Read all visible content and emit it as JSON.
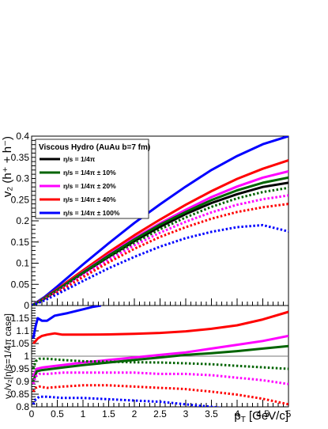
{
  "chart_data": [
    {
      "type": "line",
      "panel": "top",
      "ylabel": "v₂ (h⁺ + h⁻)",
      "xlim": [
        0,
        5
      ],
      "ylim": [
        0,
        0.4
      ],
      "x_ticks": [
        "0",
        "0.5",
        "1",
        "1.5",
        "2",
        "2.5",
        "3",
        "3.5",
        "4",
        "4.5",
        "5"
      ],
      "y_ticks": [
        "0",
        "0.05",
        "0.1",
        "0.15",
        "0.2",
        "0.25",
        "0.3",
        "0.35",
        "0.4"
      ],
      "legend": {
        "title": "Viscous Hydro (AuAu b=7 fm)",
        "position": "top-left",
        "entries": [
          {
            "label": "η/s = 1/4π",
            "color": "#000000"
          },
          {
            "label": "η/s = 1/4π ± 10%",
            "color": "#006400"
          },
          {
            "label": "η/s = 1/4π ± 20%",
            "color": "#ff00ff"
          },
          {
            "label": "η/s = 1/4π ± 40%",
            "color": "#ff0000"
          },
          {
            "label": "η/s = 1/4π ± 100%",
            "color": "#0000ff"
          }
        ]
      },
      "series": [
        {
          "color": "#000000",
          "style": "solid",
          "x": [
            0,
            0.25,
            0.5,
            1,
            1.5,
            2,
            2.5,
            3,
            3.5,
            4,
            4.5,
            5
          ],
          "y": [
            0,
            0.016,
            0.036,
            0.076,
            0.115,
            0.152,
            0.186,
            0.216,
            0.242,
            0.263,
            0.28,
            0.29
          ]
        },
        {
          "color": "#0000ff",
          "style": "solid",
          "x": [
            0,
            0.25,
            0.5,
            1,
            1.5,
            2,
            2.5,
            3,
            3.5,
            4,
            4.5,
            5
          ],
          "y": [
            0,
            0.02,
            0.045,
            0.097,
            0.147,
            0.195,
            0.239,
            0.281,
            0.32,
            0.353,
            0.381,
            0.4
          ]
        },
        {
          "color": "#ff0000",
          "style": "solid",
          "x": [
            0,
            0.25,
            0.5,
            1,
            1.5,
            2,
            2.5,
            3,
            3.5,
            4,
            4.5,
            5
          ],
          "y": [
            0,
            0.018,
            0.039,
            0.083,
            0.126,
            0.166,
            0.203,
            0.238,
            0.27,
            0.299,
            0.323,
            0.343
          ]
        },
        {
          "color": "#ff00ff",
          "style": "solid",
          "x": [
            0,
            0.25,
            0.5,
            1,
            1.5,
            2,
            2.5,
            3,
            3.5,
            4,
            4.5,
            5
          ],
          "y": [
            0,
            0.017,
            0.037,
            0.079,
            0.12,
            0.159,
            0.194,
            0.226,
            0.256,
            0.281,
            0.302,
            0.317
          ]
        },
        {
          "color": "#006400",
          "style": "solid",
          "x": [
            0,
            0.25,
            0.5,
            1,
            1.5,
            2,
            2.5,
            3,
            3.5,
            4,
            4.5,
            5
          ],
          "y": [
            0,
            0.017,
            0.037,
            0.078,
            0.118,
            0.156,
            0.191,
            0.221,
            0.249,
            0.272,
            0.29,
            0.302
          ]
        },
        {
          "color": "#006400",
          "style": "dotted",
          "x": [
            0,
            0.25,
            0.5,
            1,
            1.5,
            2,
            2.5,
            3,
            3.5,
            4,
            4.5,
            5
          ],
          "y": [
            0,
            0.015,
            0.034,
            0.074,
            0.112,
            0.148,
            0.18,
            0.208,
            0.233,
            0.253,
            0.268,
            0.278
          ]
        },
        {
          "color": "#ff00ff",
          "style": "dotted",
          "x": [
            0,
            0.25,
            0.5,
            1,
            1.5,
            2,
            2.5,
            3,
            3.5,
            4,
            4.5,
            5
          ],
          "y": [
            0,
            0.015,
            0.033,
            0.071,
            0.108,
            0.142,
            0.172,
            0.198,
            0.22,
            0.238,
            0.251,
            0.26
          ]
        },
        {
          "color": "#ff0000",
          "style": "dotted",
          "x": [
            0,
            0.25,
            0.5,
            1,
            1.5,
            2,
            2.5,
            3,
            3.5,
            4,
            4.5,
            5
          ],
          "y": [
            0,
            0.014,
            0.031,
            0.067,
            0.102,
            0.134,
            0.162,
            0.185,
            0.205,
            0.221,
            0.232,
            0.24
          ]
        },
        {
          "color": "#0000ff",
          "style": "dotted",
          "x": [
            0,
            0.25,
            0.5,
            1,
            1.5,
            2,
            2.5,
            3,
            3.5,
            4,
            4.5,
            5
          ],
          "y": [
            0,
            0.012,
            0.027,
            0.058,
            0.088,
            0.115,
            0.139,
            0.159,
            0.174,
            0.185,
            0.19,
            0.175
          ]
        }
      ]
    },
    {
      "type": "line",
      "panel": "bottom",
      "xlabel": "p_T [GeV/c]",
      "ylabel": "v₂/v₂[η/s=1/4π case]",
      "xlim": [
        0,
        5
      ],
      "ylim": [
        0.8,
        1.2
      ],
      "x_ticks": [
        "0",
        "0.5",
        "1",
        "1.5",
        "2",
        "2.5",
        "3",
        "3.5",
        "4",
        "4.5",
        "5"
      ],
      "y_ticks": [
        "0.8",
        "0.85",
        "0.9",
        "0.95",
        "1",
        "1.05",
        "1.1",
        "1.15"
      ],
      "reference_line": 1,
      "series": [
        {
          "color": "#0000ff",
          "style": "solid",
          "x": [
            0.03,
            0.08,
            0.12,
            0.2,
            0.3,
            0.45,
            0.7,
            1.0,
            1.2,
            1.35
          ],
          "y": [
            1.07,
            1.12,
            1.15,
            1.14,
            1.14,
            1.16,
            1.17,
            1.185,
            1.195,
            1.2
          ]
        },
        {
          "color": "#ff0000",
          "style": "solid",
          "x": [
            0.03,
            0.08,
            0.12,
            0.2,
            0.3,
            0.45,
            0.6,
            1.0,
            1.5,
            2.0,
            2.5,
            3.0,
            3.5,
            4.0,
            4.5,
            5.0
          ],
          "y": [
            1.05,
            1.06,
            1.07,
            1.08,
            1.085,
            1.09,
            1.085,
            1.085,
            1.086,
            1.088,
            1.092,
            1.098,
            1.108,
            1.122,
            1.145,
            1.175
          ]
        },
        {
          "color": "#ff00ff",
          "style": "solid",
          "x": [
            0.03,
            0.1,
            0.2,
            0.4,
            0.6,
            1.0,
            1.5,
            2.0,
            2.5,
            3.0,
            3.5,
            4.0,
            4.5,
            5.0
          ],
          "y": [
            0.92,
            0.95,
            0.955,
            0.96,
            0.965,
            0.975,
            0.985,
            0.995,
            1.005,
            1.015,
            1.03,
            1.045,
            1.06,
            1.08
          ]
        },
        {
          "color": "#006400",
          "style": "solid",
          "x": [
            0.03,
            0.1,
            0.2,
            0.4,
            0.6,
            1.0,
            1.5,
            2.0,
            2.5,
            3.0,
            3.5,
            4.0,
            4.5,
            5.0
          ],
          "y": [
            0.9,
            0.94,
            0.945,
            0.95,
            0.955,
            0.965,
            0.975,
            0.985,
            0.995,
            1.005,
            1.012,
            1.02,
            1.03,
            1.04
          ]
        },
        {
          "color": "#006400",
          "style": "dotted",
          "x": [
            0.03,
            0.08,
            0.15,
            0.3,
            0.6,
            1.0,
            1.5,
            2.0,
            2.5,
            3.0,
            3.5,
            4.0,
            4.5,
            5.0
          ],
          "y": [
            0.95,
            0.98,
            0.99,
            0.99,
            0.985,
            0.98,
            0.978,
            0.976,
            0.975,
            0.972,
            0.968,
            0.962,
            0.956,
            0.95
          ]
        },
        {
          "color": "#ff00ff",
          "style": "dotted",
          "x": [
            0.03,
            0.08,
            0.15,
            0.3,
            0.6,
            1.0,
            1.5,
            2.0,
            2.5,
            3.0,
            3.5,
            4.0,
            4.5,
            5.0
          ],
          "y": [
            0.89,
            0.92,
            0.93,
            0.93,
            0.935,
            0.935,
            0.935,
            0.935,
            0.93,
            0.93,
            0.925,
            0.915,
            0.905,
            0.89
          ]
        },
        {
          "color": "#ff0000",
          "style": "dotted",
          "x": [
            0.03,
            0.08,
            0.15,
            0.3,
            0.6,
            1.0,
            1.5,
            2.0,
            2.5,
            3.0,
            3.5,
            4.0,
            4.5,
            5.0
          ],
          "y": [
            0.86,
            0.875,
            0.88,
            0.875,
            0.88,
            0.885,
            0.885,
            0.88,
            0.875,
            0.87,
            0.86,
            0.848,
            0.832,
            0.81
          ]
        },
        {
          "color": "#0000ff",
          "style": "dotted",
          "x": [
            0.03,
            0.08,
            0.15,
            0.3,
            0.6,
            1.0,
            1.5,
            2.0,
            2.5,
            3.0,
            3.5,
            4.0,
            4.5,
            5.0
          ],
          "y": [
            0.81,
            0.83,
            0.84,
            0.84,
            0.835,
            0.835,
            0.83,
            0.825,
            0.82,
            0.81,
            0.8,
            0.79,
            0.78,
            0.77
          ]
        }
      ]
    }
  ]
}
